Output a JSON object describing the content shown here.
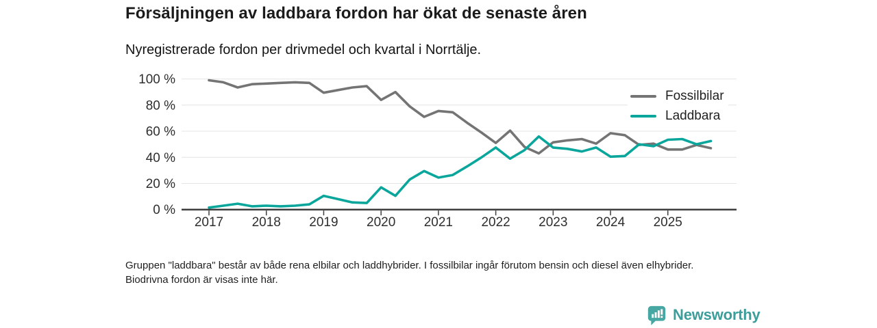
{
  "header": {
    "title": "Försäljningen av laddbara fordon har ökat de senaste åren",
    "subtitle": "Nyregistrerade fordon per drivmedel och kvartal i Norrtälje."
  },
  "chart_data": {
    "type": "line",
    "title": "Försäljningen av laddbara fordon har ökat de senaste åren",
    "subtitle": "Nyregistrerade fordon per drivmedel och kvartal i Norrtälje.",
    "x_quarters": [
      "2017 Q1",
      "2017 Q2",
      "2017 Q3",
      "2017 Q4",
      "2018 Q1",
      "2018 Q2",
      "2018 Q3",
      "2018 Q4",
      "2019 Q1",
      "2019 Q2",
      "2019 Q3",
      "2019 Q4",
      "2020 Q1",
      "2020 Q2",
      "2020 Q3",
      "2020 Q4",
      "2021 Q1",
      "2021 Q2",
      "2021 Q3",
      "2021 Q4",
      "2022 Q1",
      "2022 Q2",
      "2022 Q3",
      "2022 Q4",
      "2023 Q1",
      "2023 Q2",
      "2023 Q3",
      "2023 Q4",
      "2024 Q1",
      "2024 Q2",
      "2024 Q3",
      "2024 Q4",
      "2025 Q1",
      "2025 Q2",
      "2025 Q3",
      "2025 Q4"
    ],
    "series": [
      {
        "name": "Fossilbilar",
        "color": "#747474",
        "values": [
          99,
          97.5,
          93.5,
          96,
          96.5,
          97,
          97.5,
          97,
          89.5,
          91.5,
          93.5,
          94.5,
          84,
          90,
          79,
          71,
          75.5,
          74.5,
          66.5,
          59,
          51,
          60.5,
          48,
          43,
          51.5,
          53,
          54,
          50.5,
          58.5,
          57,
          49.5,
          50.5,
          46,
          46,
          49.5,
          47
        ]
      },
      {
        "name": "Laddbara",
        "color": "#0aa69c",
        "values": [
          1.5,
          3,
          4.5,
          2.5,
          3,
          2.5,
          3,
          4,
          10.5,
          8,
          5.5,
          5,
          17,
          10.5,
          23,
          29.5,
          24.5,
          26.5,
          33,
          40,
          47.5,
          39,
          45.5,
          56,
          47.5,
          46.5,
          44.5,
          47.5,
          40.5,
          41,
          50,
          48.5,
          53.5,
          54,
          50,
          52.5
        ]
      }
    ],
    "x_ticks": [
      {
        "q": 0,
        "label": "2017"
      },
      {
        "q": 4,
        "label": "2018"
      },
      {
        "q": 8,
        "label": "2019"
      },
      {
        "q": 12,
        "label": "2020"
      },
      {
        "q": 16,
        "label": "2021"
      },
      {
        "q": 20,
        "label": "2022"
      },
      {
        "q": 24,
        "label": "2023"
      },
      {
        "q": 28,
        "label": "2024"
      },
      {
        "q": 32,
        "label": "2025"
      }
    ],
    "y_ticks": [
      {
        "value": 0,
        "label": "0 %"
      },
      {
        "value": 20,
        "label": "20 %"
      },
      {
        "value": 40,
        "label": "40 %"
      },
      {
        "value": 60,
        "label": "60 %"
      },
      {
        "value": 80,
        "label": "80 %"
      },
      {
        "value": 100,
        "label": "100 %"
      }
    ],
    "ylim": [
      0,
      100
    ],
    "xlabel": "",
    "ylabel": "",
    "grid": "horizontal",
    "legend_position": "top-right-inside",
    "colors": {
      "grid": "#e4e4e4",
      "axis": "#3d3d3d",
      "tick_text": "#2e2e2e",
      "background": "#ffffff"
    }
  },
  "footnote": {
    "text": "Gruppen \"laddbara\" består av både rena elbilar och laddhybrider. I fossilbilar ingår förutom bensin och diesel även elhybrider. Biodrivna fordon är visas inte här."
  },
  "logo": {
    "label": "Newsworthy",
    "icon": "newsworthy-barchart-pin-icon",
    "icon_color": "#47a8a3",
    "text_color": "#3c9e9b"
  }
}
